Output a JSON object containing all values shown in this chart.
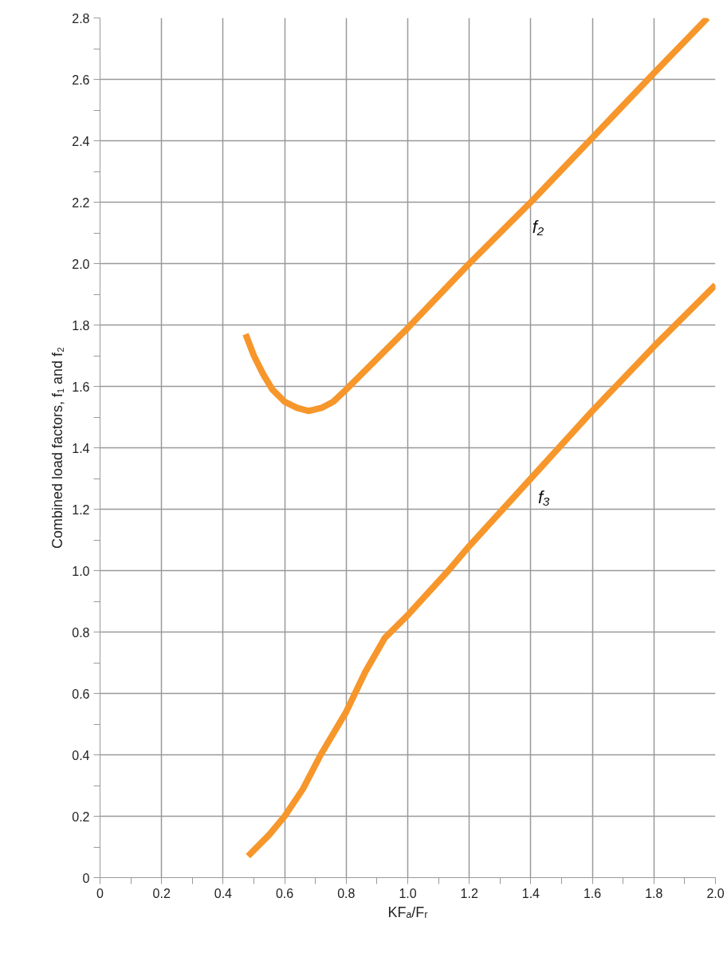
{
  "chart_data": {
    "type": "line",
    "xlabel": "KFₐ/Fᵣ",
    "ylabel": "Combined load factors, f₁ and f₂",
    "xlim": [
      0,
      2
    ],
    "ylim": [
      0,
      2.8
    ],
    "xticks": [
      0,
      {
        "value": 0.1,
        "label": null
      },
      0.2,
      {
        "value": 0.3,
        "label": null
      },
      0.4,
      {
        "value": 0.5,
        "label": null
      },
      0.6,
      {
        "value": 0.7,
        "label": null
      },
      0.8,
      {
        "value": 0.9,
        "label": null
      },
      {
        "value": 1,
        "label": "1.0"
      },
      {
        "value": 1.1,
        "label": null
      },
      1.2,
      {
        "value": 1.3,
        "label": null
      },
      1.4,
      {
        "value": 1.5,
        "label": null
      },
      1.6,
      {
        "value": 1.7,
        "label": null
      },
      1.8,
      {
        "value": 1.9,
        "label": null
      },
      {
        "value": 2,
        "label": "2.0"
      }
    ],
    "yticks": [
      0,
      {
        "value": 0.1,
        "label": null
      },
      0.2,
      {
        "value": 0.3,
        "label": null
      },
      0.4,
      {
        "value": 0.5,
        "label": null
      },
      0.6,
      {
        "value": 0.7,
        "label": null
      },
      0.8,
      {
        "value": 0.9,
        "label": null
      },
      {
        "value": 1,
        "label": "1.0"
      },
      {
        "value": 1.1,
        "label": null
      },
      1.2,
      {
        "value": 1.3,
        "label": null
      },
      1.4,
      {
        "value": 1.5,
        "label": null
      },
      1.6,
      {
        "value": 1.7,
        "label": null
      },
      1.8,
      {
        "value": 1.9,
        "label": null
      },
      {
        "value": 2,
        "label": "2.0"
      },
      {
        "value": 2.1,
        "label": null
      },
      2.2,
      {
        "value": 2.3,
        "label": null
      },
      2.4,
      {
        "value": 2.5,
        "label": null
      },
      2.6,
      {
        "value": 2.7,
        "label": null
      },
      2.8
    ],
    "grid": true,
    "marker": "none",
    "line_style": "solid",
    "series": [
      {
        "name": "f₂",
        "color": "#f7962b",
        "x": [
          0.473,
          0.5,
          0.53,
          0.56,
          0.6,
          0.64,
          0.678,
          0.72,
          0.758,
          0.8,
          1.0,
          1.2,
          1.4,
          1.6,
          1.8,
          1.974
        ],
        "values": [
          1.77,
          1.7,
          1.64,
          1.59,
          1.55,
          1.53,
          1.52,
          1.53,
          1.55,
          1.59,
          1.79,
          2.0,
          2.2,
          2.41,
          2.62,
          2.8
        ]
      },
      {
        "name": "f₃",
        "color": "#f7962b",
        "x": [
          0.481,
          0.55,
          0.6,
          0.66,
          0.717,
          0.8,
          0.862,
          0.925,
          1.0,
          1.132,
          1.2,
          1.4,
          1.6,
          1.8,
          2.0
        ],
        "values": [
          0.07,
          0.14,
          0.2,
          0.29,
          0.4,
          0.54,
          0.67,
          0.78,
          0.855,
          1.0,
          1.08,
          1.3,
          1.52,
          1.73,
          1.93
        ]
      }
    ]
  }
}
